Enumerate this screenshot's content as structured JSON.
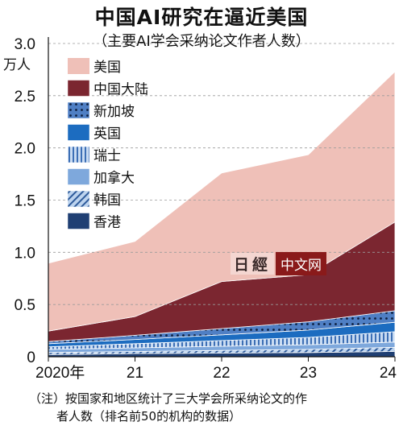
{
  "title": "中国AI研究在逼近美国",
  "subtitle": "（主要AI学会采纳论文作者人数）",
  "note_line1": "（注）按国家和地区统计了三大学会所采纳论文的作",
  "note_line2": "者人数（排名前50的机构的数据）",
  "watermark": {
    "logo": "日經",
    "text": "中文网"
  },
  "chart_data": {
    "type": "area",
    "stacked": true,
    "ylabel": "万人",
    "ylim": [
      0,
      3.0
    ],
    "yticks": [
      "0",
      "0.5",
      "1.0",
      "1.5",
      "2.0",
      "2.5",
      "3.0"
    ],
    "x": [
      "2020年",
      "21",
      "22",
      "23",
      "24"
    ],
    "grid": "dashed horizontal",
    "legend_position": "top-left",
    "series": [
      {
        "name": "香港",
        "values": [
          0.02,
          0.03,
          0.035,
          0.04,
          0.05
        ],
        "color": "#1f3f73",
        "pattern": "solid"
      },
      {
        "name": "韩国",
        "values": [
          0.02,
          0.02,
          0.025,
          0.03,
          0.04
        ],
        "color": "#8fb3de",
        "pattern": "diagonal"
      },
      {
        "name": "加拿大",
        "values": [
          0.03,
          0.035,
          0.04,
          0.045,
          0.05
        ],
        "color": "#7ea8dc",
        "pattern": "solid"
      },
      {
        "name": "瑞士",
        "values": [
          0.025,
          0.04,
          0.055,
          0.07,
          0.1
        ],
        "color": "#9bbde6",
        "pattern": "vertical"
      },
      {
        "name": "英国",
        "values": [
          0.03,
          0.04,
          0.055,
          0.07,
          0.09
        ],
        "color": "#1c6cc0",
        "pattern": "solid"
      },
      {
        "name": "新加坡",
        "values": [
          0.02,
          0.04,
          0.06,
          0.08,
          0.11
        ],
        "color": "#4f7fc4",
        "pattern": "dots"
      },
      {
        "name": "中国大陆",
        "values": [
          0.1,
          0.18,
          0.45,
          0.45,
          0.85
        ],
        "color": "#7b2630",
        "pattern": "solid"
      },
      {
        "name": "美国",
        "values": [
          0.65,
          0.72,
          1.04,
          1.15,
          1.44
        ],
        "color": "#efc0b8",
        "pattern": "solid"
      }
    ],
    "legend_order": [
      "美国",
      "中国大陆",
      "新加坡",
      "英国",
      "瑞士",
      "加拿大",
      "韩国",
      "香港"
    ]
  }
}
